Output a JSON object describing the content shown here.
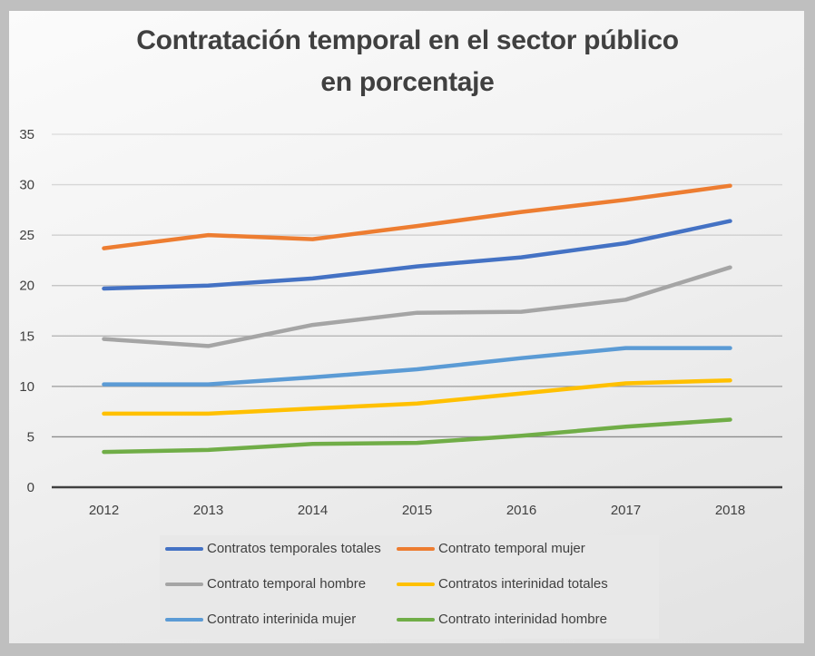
{
  "chart_data": {
    "type": "line",
    "title": "Contratación temporal en el sector público",
    "subtitle": "en porcentaje",
    "xlabel": "",
    "ylabel": "",
    "categories": [
      "2012",
      "2013",
      "2014",
      "2015",
      "2016",
      "2017",
      "2018"
    ],
    "ylim": [
      0,
      35
    ],
    "yticks": [
      0,
      5,
      10,
      15,
      20,
      25,
      30,
      35
    ],
    "grid": true,
    "legend_position": "bottom",
    "series": [
      {
        "name": "Contratos temporales totales",
        "color": "#4472c4",
        "values": [
          19.7,
          20.0,
          20.7,
          21.9,
          22.8,
          24.2,
          26.4
        ]
      },
      {
        "name": "Contrato temporal mujer",
        "color": "#ed7d31",
        "values": [
          23.7,
          25.0,
          24.6,
          25.9,
          27.3,
          28.5,
          29.9
        ]
      },
      {
        "name": "Contrato temporal hombre",
        "color": "#a5a5a5",
        "values": [
          14.7,
          14.0,
          16.1,
          17.3,
          17.4,
          18.6,
          21.8
        ]
      },
      {
        "name": "Contratos interinidad totales",
        "color": "#ffc000",
        "values": [
          7.3,
          7.3,
          7.8,
          8.3,
          9.3,
          10.3,
          10.6
        ]
      },
      {
        "name": "Contrato interinida mujer",
        "color": "#5b9bd5",
        "values": [
          10.2,
          10.2,
          10.9,
          11.7,
          12.8,
          13.8,
          13.8
        ]
      },
      {
        "name": "Contrato interinidad hombre",
        "color": "#70ad47",
        "values": [
          3.5,
          3.7,
          4.3,
          4.4,
          5.1,
          6.0,
          6.7
        ]
      }
    ]
  }
}
